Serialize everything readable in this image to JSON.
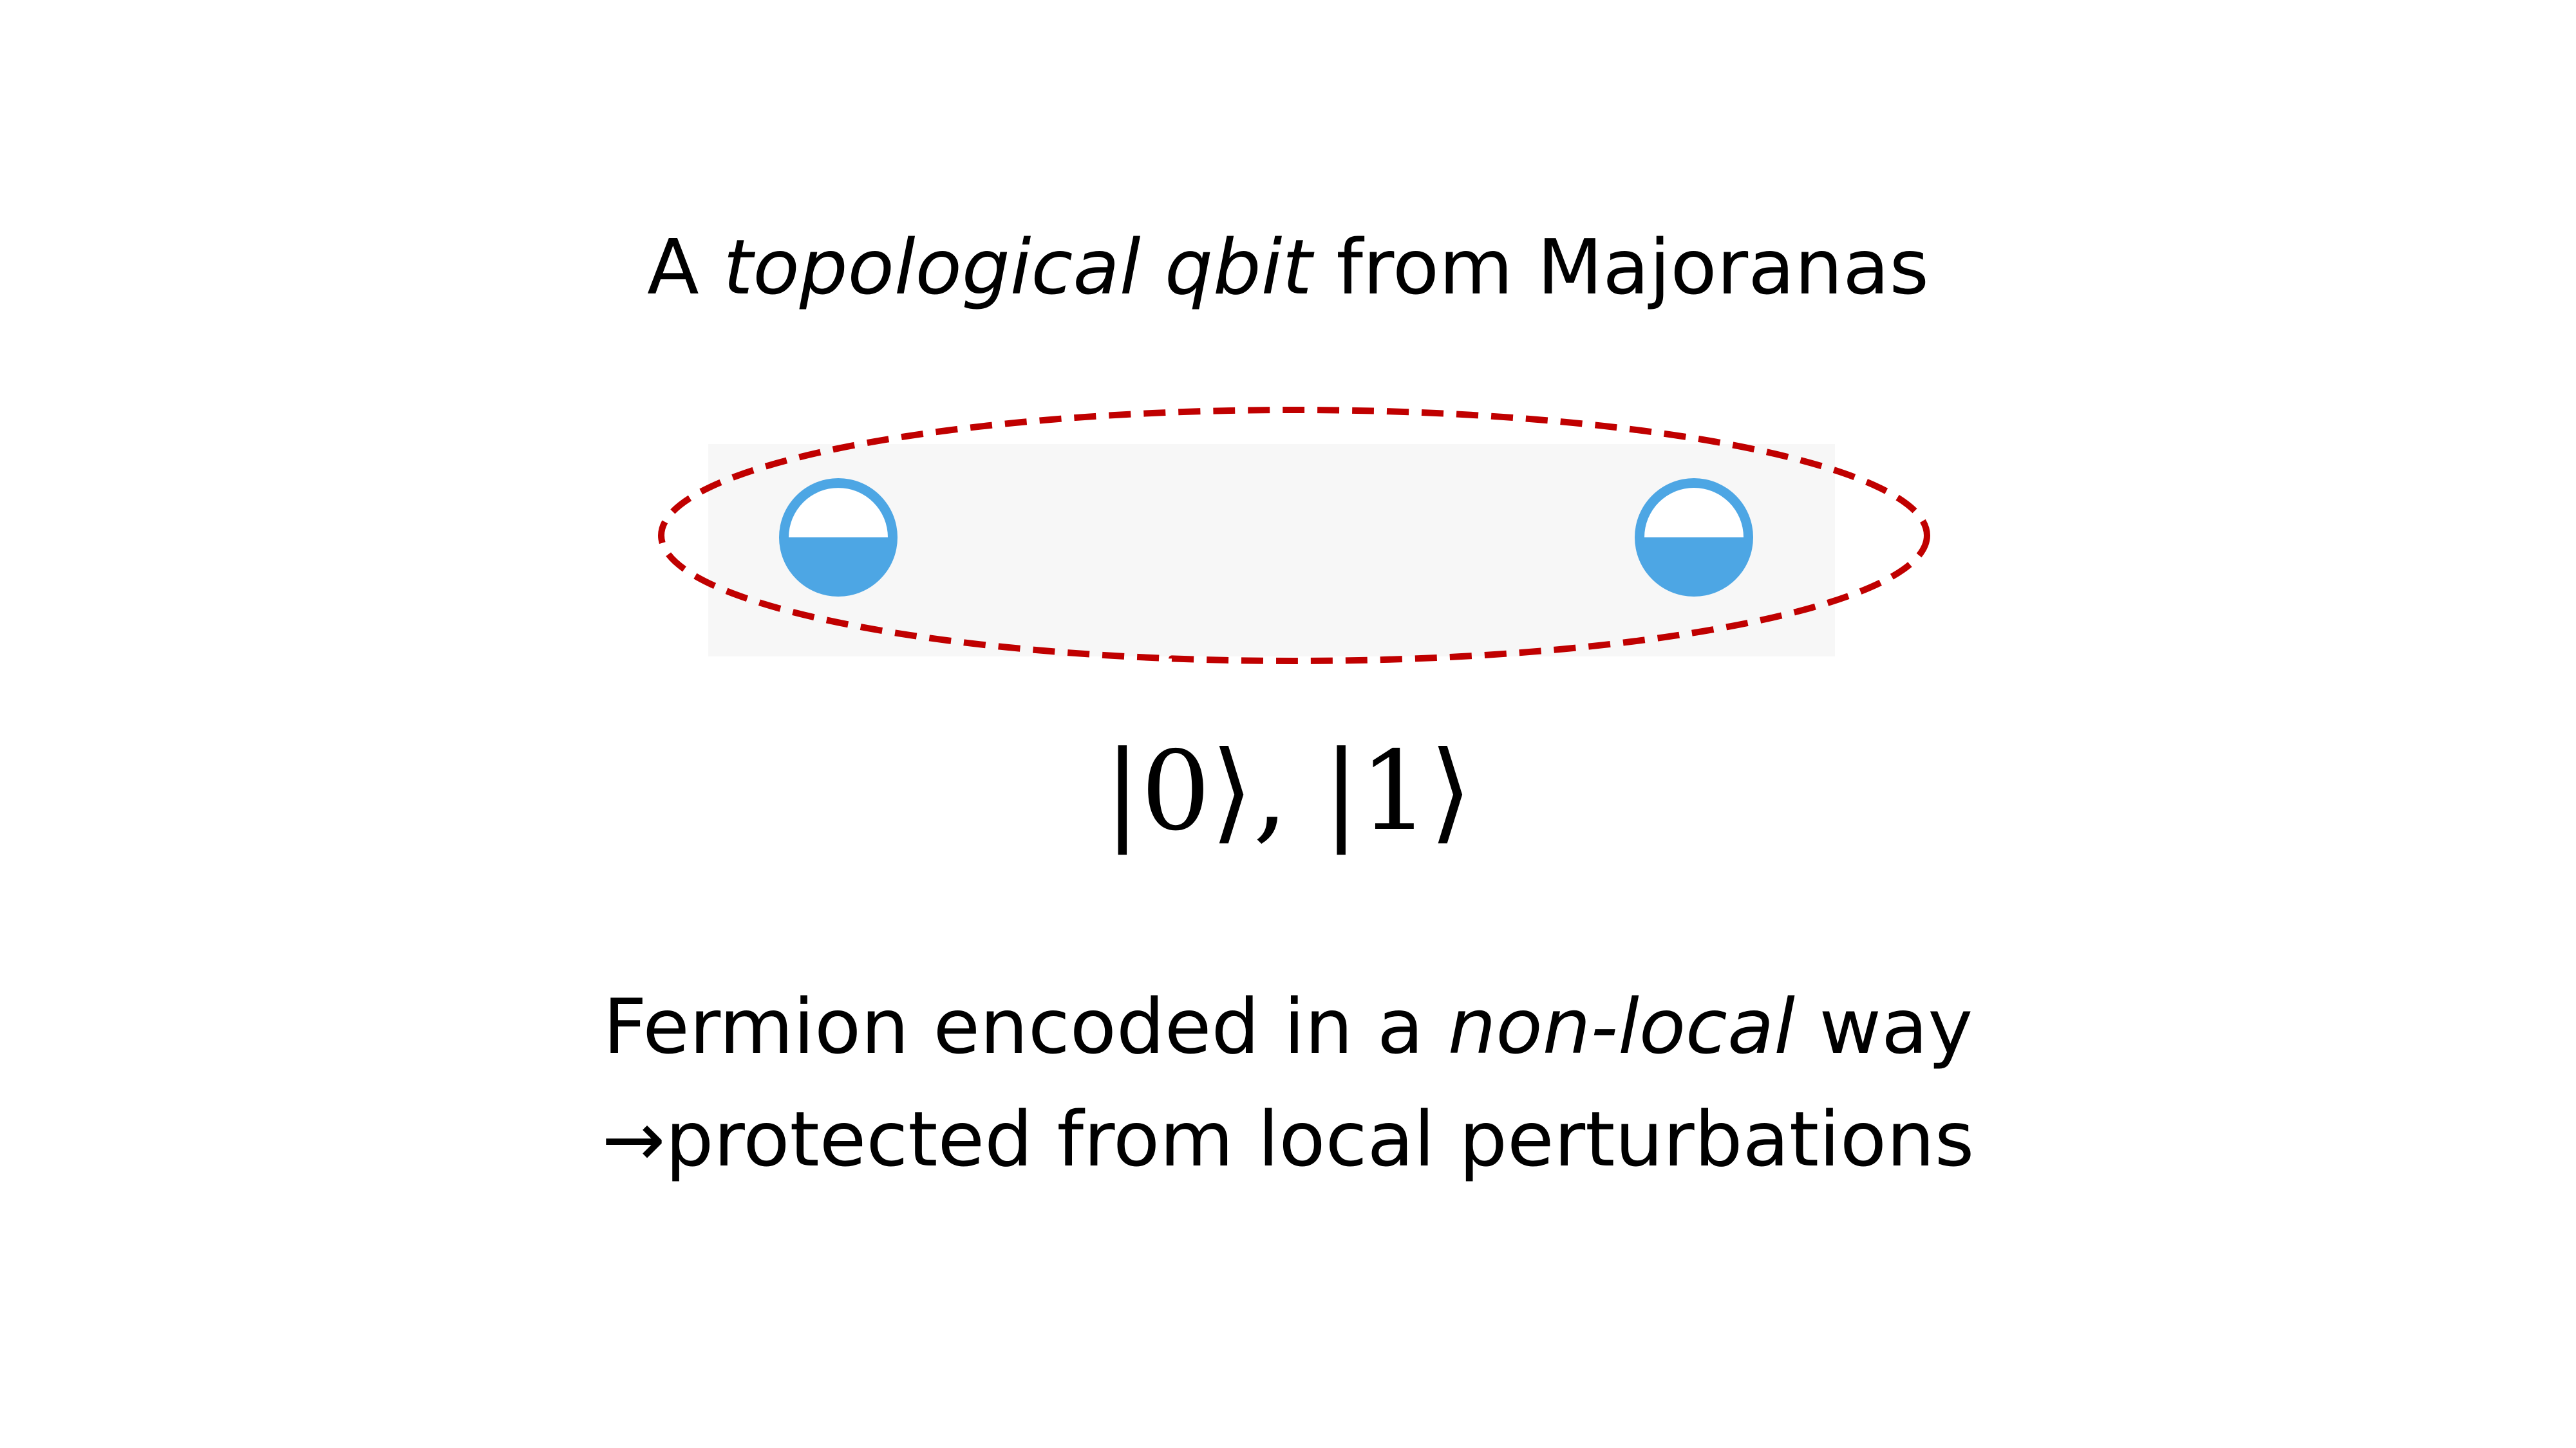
{
  "title": {
    "prefix": "A",
    "italic": "topological qbit",
    "suffix": "from Majoranas"
  },
  "diagram": {
    "ellipse_color": "#c00000",
    "majorana_fill": "#4da6e4",
    "majorana_background": "#ffffff"
  },
  "states": "|0⟩, |1⟩",
  "caption": {
    "line1_prefix": "Fermion encoded in a",
    "line1_italic": "non-local",
    "line1_suffix": "way",
    "line2": "→protected from local perturbations"
  }
}
